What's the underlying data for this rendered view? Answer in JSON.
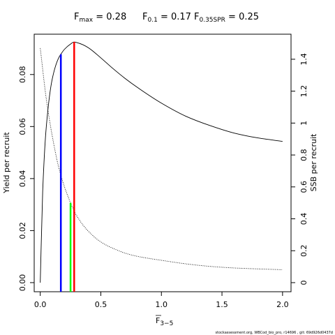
{
  "chart_data": {
    "type": "line",
    "title": {
      "fmax": {
        "base": "F",
        "sub": "max",
        "value": "0.28"
      },
      "f01": {
        "base": "F",
        "sub": "0.1",
        "value": "0.17"
      },
      "fspr": {
        "base": "F",
        "sub": "0.35SPR",
        "value": "0.25"
      }
    },
    "xlabel": {
      "base": "F",
      "sub": "3−5"
    },
    "ylabel_left": "Yield per recruit",
    "ylabel_right": "SSB per recruit",
    "xlim": [
      -0.05,
      2.07
    ],
    "ylim_left": [
      -0.0035,
      0.0955
    ],
    "ylim_right": [
      -0.057,
      1.557
    ],
    "x_ticks": [
      0,
      0.5,
      1,
      1.5,
      2
    ],
    "x_tick_labels": [
      "0.0",
      "0.5",
      "1.0",
      "1.5",
      "2.0"
    ],
    "y_left_ticks": [
      0,
      0.02,
      0.04,
      0.06,
      0.08
    ],
    "y_left_tick_labels": [
      "0.00",
      "0.02",
      "0.04",
      "0.06",
      "0.08"
    ],
    "y_right_ticks": [
      0,
      0.2,
      0.4,
      0.6,
      0.8,
      1,
      1.2,
      1.4
    ],
    "y_right_tick_labels": [
      "0",
      "0.2",
      "0.4",
      "0.6",
      "0.8",
      "1",
      "1.2",
      "1.4"
    ],
    "series": [
      {
        "axis": "left",
        "style": "solid",
        "color": "#000000",
        "x": [
          0,
          0.02,
          0.05,
          0.1,
          0.15,
          0.17,
          0.2,
          0.25,
          0.28,
          0.3,
          0.35,
          0.4,
          0.5,
          0.6,
          0.7,
          0.8,
          1.0,
          1.2,
          1.4,
          1.6,
          1.8,
          2.0
        ],
        "y": [
          0,
          0.035,
          0.06,
          0.0785,
          0.0862,
          0.0878,
          0.0897,
          0.0917,
          0.0925,
          0.0923,
          0.0915,
          0.0902,
          0.0864,
          0.0823,
          0.0785,
          0.0751,
          0.069,
          0.064,
          0.0604,
          0.0575,
          0.0556,
          0.0543
        ]
      },
      {
        "axis": "right",
        "style": "dotted",
        "color": "#000000",
        "x": [
          0,
          0.05,
          0.1,
          0.15,
          0.2,
          0.25,
          0.3,
          0.4,
          0.5,
          0.6,
          0.7,
          0.8,
          1.0,
          1.2,
          1.4,
          1.6,
          1.8,
          2.0
        ],
        "y": [
          1.47,
          1.15,
          0.915,
          0.73,
          0.6,
          0.5,
          0.42,
          0.32,
          0.255,
          0.215,
          0.185,
          0.165,
          0.14,
          0.118,
          0.102,
          0.092,
          0.086,
          0.081
        ]
      }
    ],
    "reference_lines": [
      {
        "name": "F0.1",
        "x": 0.17,
        "y_left": 0.0878,
        "color": "#0000ff"
      },
      {
        "name": "Fmax",
        "x": 0.28,
        "y_left": 0.0925,
        "color": "#ff0000"
      },
      {
        "name": "F0.35SPR",
        "x": 0.25,
        "y_right": 0.5,
        "color": "#00ff00"
      }
    ],
    "grid": false,
    "legend": "none"
  },
  "footer": "stockassessment.org, WBCod_bio_pro, r14696 , git: 69d926d0437d"
}
